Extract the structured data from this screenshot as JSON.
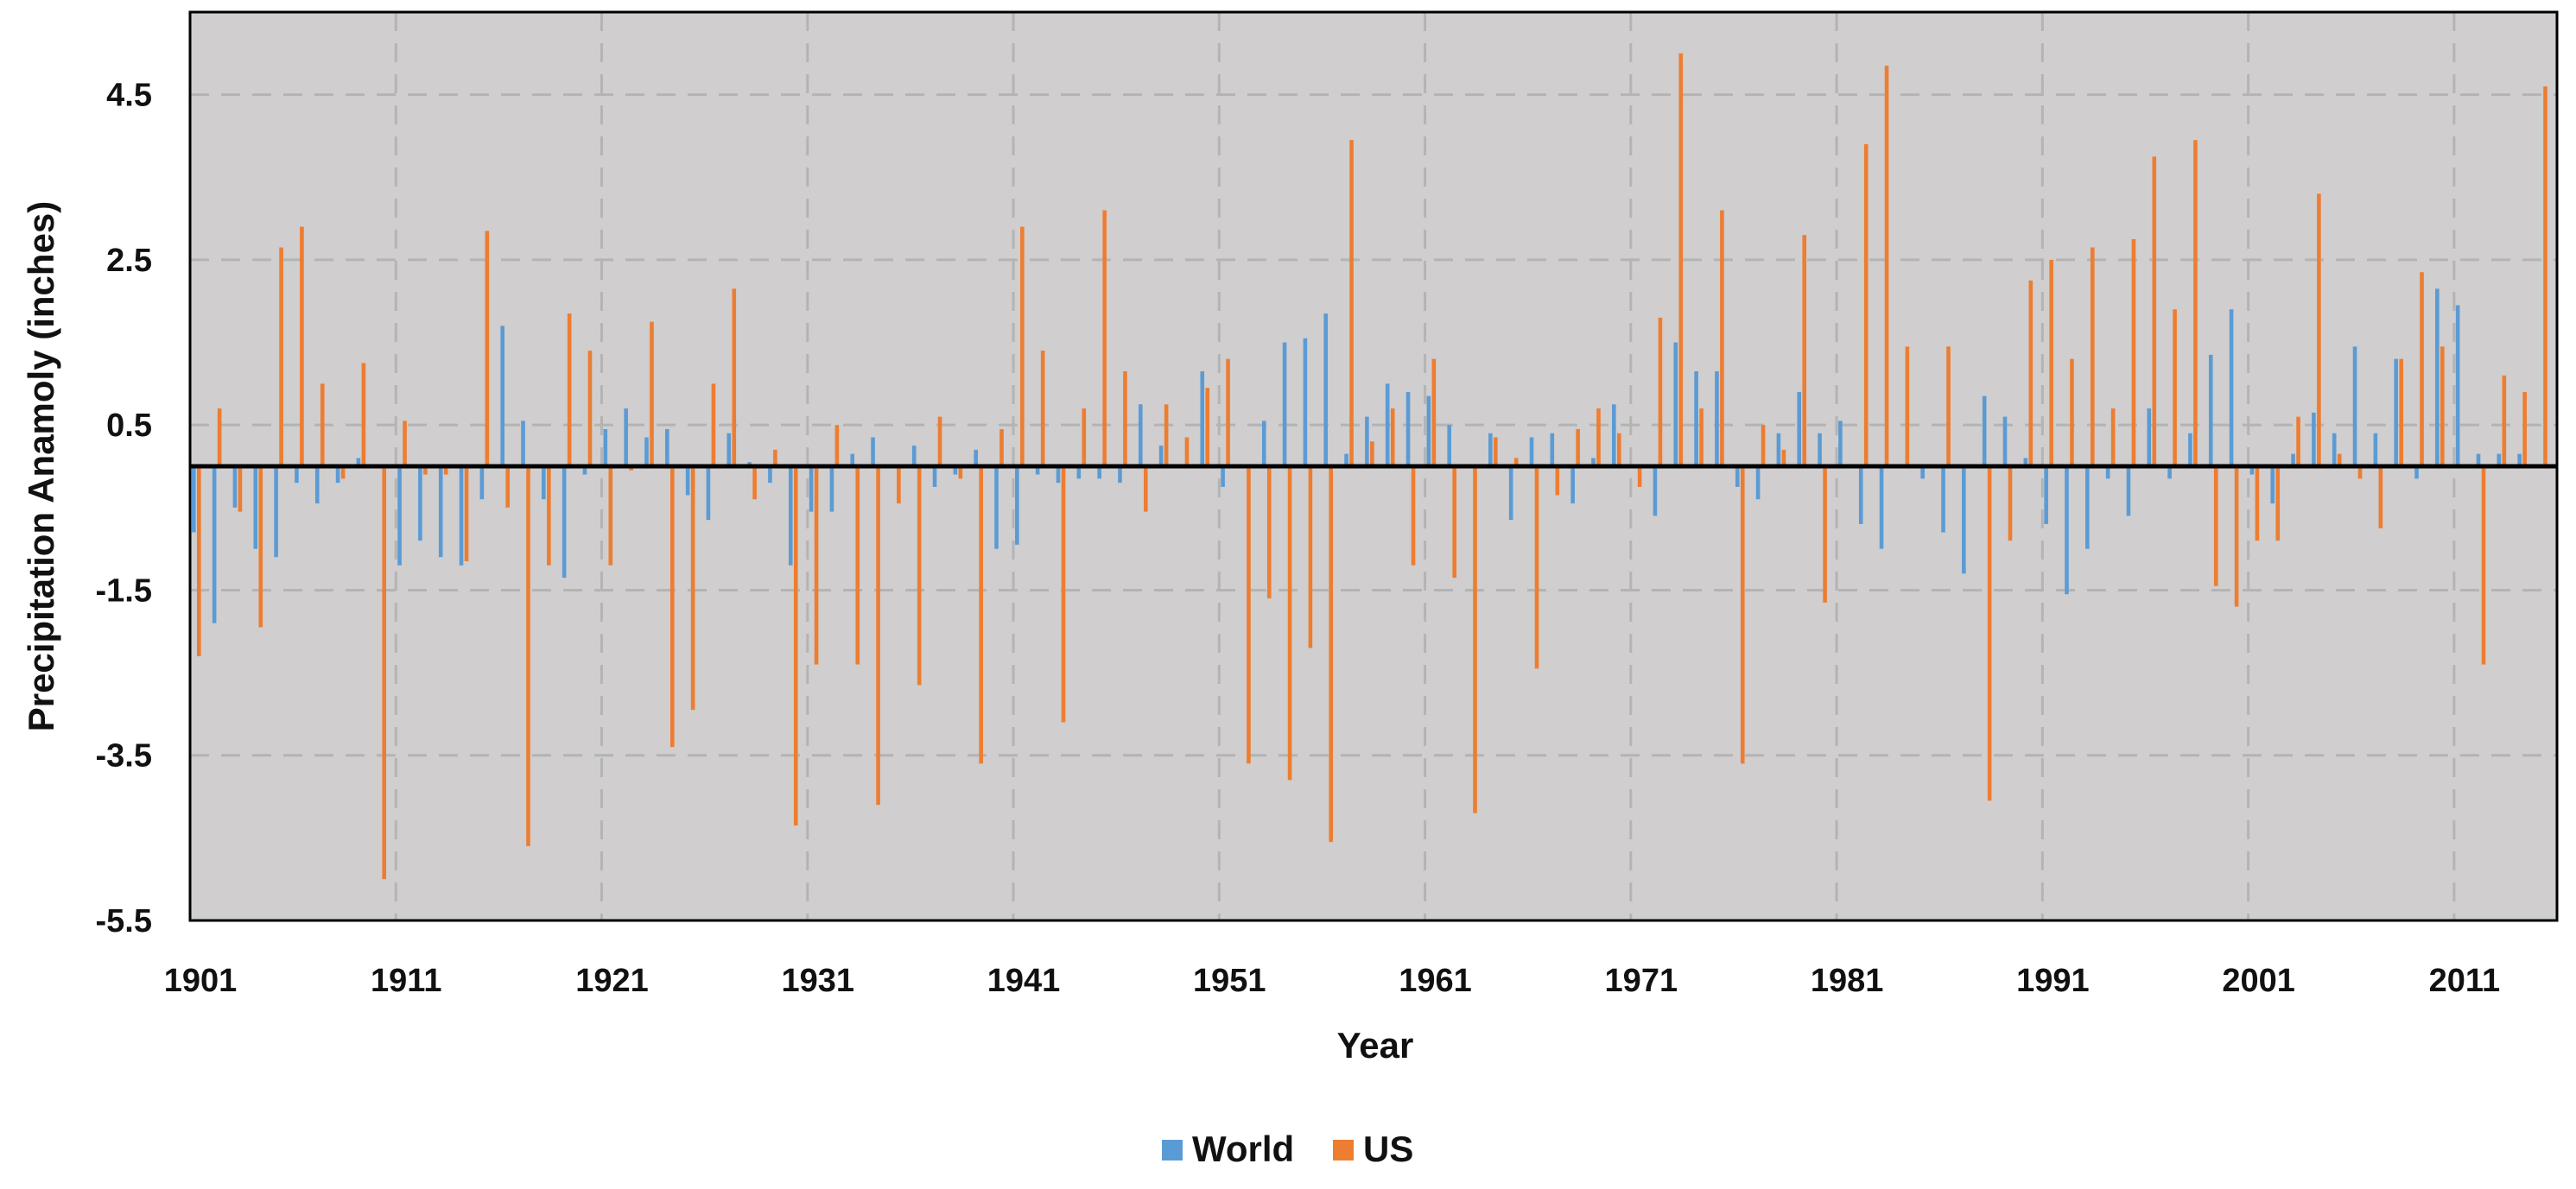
{
  "chart_data": {
    "type": "bar",
    "title": "",
    "xlabel": "Year",
    "ylabel": "Precipitation Anamoly (inches)",
    "ylim": [
      -5.5,
      5.5
    ],
    "yticks": [
      4.5,
      2.5,
      0.5,
      -1.5,
      -3.5,
      -5.5
    ],
    "ytick_labels": [
      "4.5",
      "2.5",
      "0.5",
      "-1.5",
      "-3.5",
      "-5.5"
    ],
    "xtick_labels": [
      "1901",
      "1911",
      "1921",
      "1931",
      "1941",
      "1951",
      "1961",
      "1971",
      "1981",
      "1991",
      "2001",
      "2011"
    ],
    "grid": true,
    "legend_position": "bottom-center",
    "colors": {
      "World": "#5b9bd5",
      "US": "#ed7d31",
      "plot_bg": "#d0cece",
      "grid": "#b4b4b4",
      "axis": "#000000"
    },
    "x": [
      1901,
      1902,
      1903,
      1904,
      1905,
      1906,
      1907,
      1908,
      1909,
      1910,
      1911,
      1912,
      1913,
      1914,
      1915,
      1916,
      1917,
      1918,
      1919,
      1920,
      1921,
      1922,
      1923,
      1924,
      1925,
      1926,
      1927,
      1928,
      1929,
      1930,
      1931,
      1932,
      1933,
      1934,
      1935,
      1936,
      1937,
      1938,
      1939,
      1940,
      1941,
      1942,
      1943,
      1944,
      1945,
      1946,
      1947,
      1948,
      1949,
      1950,
      1951,
      1952,
      1953,
      1954,
      1955,
      1956,
      1957,
      1958,
      1959,
      1960,
      1961,
      1962,
      1963,
      1964,
      1965,
      1966,
      1967,
      1968,
      1969,
      1970,
      1971,
      1972,
      1973,
      1974,
      1975,
      1976,
      1977,
      1978,
      1979,
      1980,
      1981,
      1982,
      1983,
      1984,
      1985,
      1986,
      1987,
      1988,
      1989,
      1990,
      1991,
      1992,
      1993,
      1994,
      1995,
      1996,
      1997,
      1998,
      1999,
      2000,
      2001,
      2002,
      2003,
      2004,
      2005,
      2006,
      2007,
      2008,
      2009,
      2010,
      2011,
      2012,
      2013,
      2014,
      2015
    ],
    "series": [
      {
        "name": "World",
        "values": [
          -0.8,
          -1.9,
          -0.5,
          -1.0,
          -1.1,
          -0.2,
          -0.45,
          -0.2,
          0.1,
          0.0,
          -1.2,
          -0.9,
          -1.1,
          -1.2,
          -0.4,
          1.7,
          0.55,
          -0.4,
          -1.35,
          -0.1,
          0.45,
          0.7,
          0.35,
          0.45,
          -0.35,
          -0.65,
          0.4,
          0.05,
          -0.2,
          -1.2,
          -0.55,
          -0.55,
          0.15,
          0.35,
          0.0,
          0.25,
          -0.25,
          -0.1,
          0.2,
          -1.0,
          -0.95,
          -0.1,
          -0.2,
          -0.15,
          -0.15,
          -0.2,
          0.75,
          0.25,
          0.0,
          1.15,
          -0.25,
          0.0,
          0.55,
          1.5,
          1.55,
          1.85,
          0.15,
          0.6,
          1.0,
          0.9,
          0.85,
          0.5,
          0.0,
          0.4,
          -0.65,
          0.35,
          0.4,
          -0.45,
          0.1,
          0.75,
          0.0,
          -0.6,
          1.5,
          1.15,
          1.15,
          -0.25,
          -0.4,
          0.4,
          0.9,
          0.4,
          0.55,
          -0.7,
          -1.0,
          0.0,
          -0.15,
          -0.8,
          -1.3,
          0.85,
          0.6,
          0.1,
          -0.7,
          -1.55,
          -1.0,
          -0.15,
          -0.6,
          0.7,
          -0.15,
          0.4,
          1.35,
          1.9,
          -0.1,
          -0.45,
          0.15,
          0.65,
          0.4,
          1.45,
          0.4,
          1.3,
          -0.15,
          2.15,
          1.95,
          0.15,
          0.15,
          0.15,
          0.0
        ]
      },
      {
        "name": "US",
        "values": [
          -2.3,
          0.7,
          -0.55,
          -1.95,
          2.65,
          2.9,
          1.0,
          -0.15,
          1.25,
          -5.0,
          0.55,
          -0.1,
          -0.1,
          -1.15,
          2.85,
          -0.5,
          -4.6,
          -1.2,
          1.85,
          1.4,
          -1.2,
          -0.05,
          1.75,
          -3.4,
          -2.95,
          1.0,
          2.15,
          -0.4,
          0.2,
          -4.35,
          -2.4,
          0.5,
          -2.4,
          -4.1,
          -0.45,
          -2.65,
          0.6,
          -0.15,
          -3.6,
          0.45,
          2.9,
          1.4,
          -3.1,
          0.7,
          3.1,
          1.15,
          -0.55,
          0.75,
          0.35,
          0.95,
          1.3,
          -3.6,
          -1.6,
          -3.8,
          -2.2,
          -4.55,
          3.95,
          0.3,
          0.7,
          -1.2,
          1.3,
          -1.35,
          -4.2,
          0.35,
          0.1,
          -2.45,
          -0.35,
          0.45,
          0.7,
          0.4,
          -0.25,
          1.8,
          5.0,
          0.7,
          3.1,
          -3.6,
          0.5,
          0.2,
          2.8,
          -1.65,
          0.0,
          3.9,
          4.85,
          1.45,
          0.0,
          1.45,
          0.0,
          -4.05,
          -0.9,
          2.25,
          2.5,
          1.3,
          2.65,
          0.7,
          2.75,
          3.75,
          1.9,
          3.95,
          -1.45,
          -1.7,
          -0.9,
          -0.9,
          0.6,
          3.3,
          0.15,
          -0.15,
          -0.75,
          1.3,
          2.35,
          1.45,
          0.0,
          -2.4,
          1.1,
          0.9,
          4.6
        ]
      }
    ]
  }
}
